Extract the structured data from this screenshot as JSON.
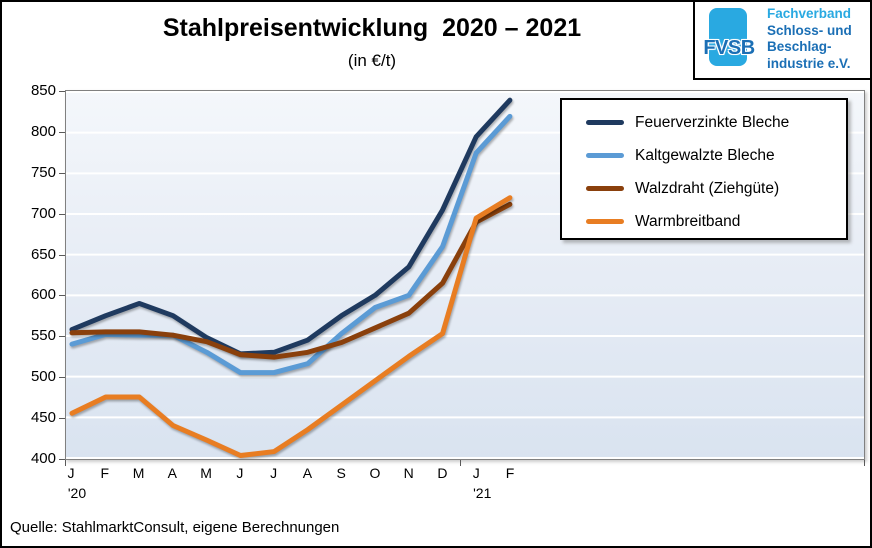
{
  "header": {
    "title": "Stahlpreisentwicklung  2020 – 2021",
    "subtitle": "(in €/t)"
  },
  "logo": {
    "abbr": "FVSB",
    "lines": [
      "Fachverband",
      "Schloss- und",
      "Beschlag-",
      "industrie e.V."
    ],
    "color_cyan": "#29a9e1",
    "color_blue": "#1b6fb5"
  },
  "footer": {
    "source": "Quelle: StahlmarktConsult, eigene Berechnungen"
  },
  "chart_data": {
    "type": "line",
    "title": "Stahlpreisentwicklung 2020 – 2021",
    "unit": "€/t",
    "categories": [
      "J",
      "F",
      "M",
      "A",
      "M",
      "J",
      "J",
      "A",
      "S",
      "O",
      "N",
      "D",
      "J",
      "F"
    ],
    "year_markers": [
      {
        "label": "'20",
        "index": 0
      },
      {
        "label": "'21",
        "index": 12
      }
    ],
    "series": [
      {
        "name": "Feuerverzinkte Bleche",
        "color": "#1f3a5f",
        "values": [
          558,
          575,
          590,
          575,
          548,
          528,
          530,
          545,
          575,
          600,
          635,
          705,
          795,
          840
        ]
      },
      {
        "name": "Kaltgewalzte Bleche",
        "color": "#5b9bd5",
        "values": [
          540,
          552,
          551,
          551,
          530,
          505,
          505,
          516,
          553,
          585,
          600,
          660,
          775,
          820
        ]
      },
      {
        "name": "Walzdraht (Ziehgüte)",
        "color": "#8a400c",
        "values": [
          554,
          555,
          555,
          551,
          543,
          527,
          524,
          530,
          542,
          560,
          578,
          615,
          690,
          712
        ]
      },
      {
        "name": "Warmbreitband",
        "color": "#e87d22",
        "values": [
          455,
          475,
          475,
          440,
          422,
          403,
          408,
          435,
          465,
          495,
          525,
          553,
          695,
          720
        ]
      }
    ],
    "ylim": [
      400,
      850
    ],
    "yticks": [
      400,
      450,
      500,
      550,
      600,
      650,
      700,
      750,
      800,
      850
    ],
    "grid": true,
    "gridline_color": "#ffffff",
    "plot_bg_top": "#f4f7fb",
    "plot_bg_bottom": "#d9e3f0",
    "legend_position": "right"
  }
}
